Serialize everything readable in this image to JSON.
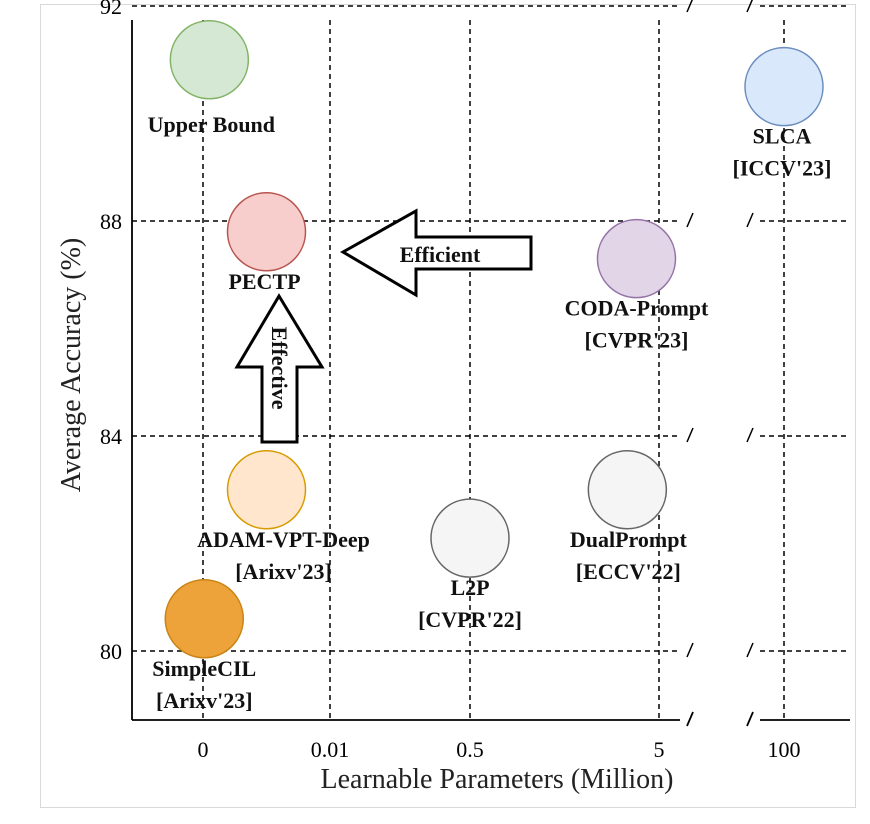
{
  "chart_data": {
    "type": "scatter",
    "title": "",
    "xlabel": "Learnable Parameters (Million)",
    "ylabel": "Average Accuracy (%)",
    "x_ticks": [
      "0",
      "0.01",
      "0.5",
      "5",
      "100"
    ],
    "y_ticks": [
      80,
      84,
      88,
      92
    ],
    "ylim": [
      78.7,
      92
    ],
    "x_scale": "broken",
    "grid": true,
    "points": [
      {
        "label": [
          "Upper Bound"
        ],
        "x": 0.0005,
        "y": 91.0,
        "fill": "#d5e8d4",
        "stroke": "#82b366"
      },
      {
        "label": [
          "SLCA",
          "[ICCV'23]"
        ],
        "x": 100,
        "y": 90.5,
        "fill": "#dae8fc",
        "stroke": "#6c8ebf"
      },
      {
        "label": [
          "PECTP"
        ],
        "x": 0.005,
        "y": 87.8,
        "fill": "#f8cecc",
        "stroke": "#b85450"
      },
      {
        "label": [
          "CODA-Prompt",
          "[CVPR'23]"
        ],
        "x": 3.8,
        "y": 87.3,
        "fill": "#e1d5e7",
        "stroke": "#9673a6"
      },
      {
        "label": [
          "ADAM-VPT-Deep",
          "[Arixv'23]"
        ],
        "x": 0.005,
        "y": 83.0,
        "fill": "#ffe6cc",
        "stroke": "#d79b00"
      },
      {
        "label": [
          "DualPrompt",
          "[ECCV'22]"
        ],
        "x": 3.4,
        "y": 83.0,
        "fill": "#f5f5f5",
        "stroke": "#666666"
      },
      {
        "label": [
          "L2P",
          "[CVPR'22]"
        ],
        "x": 0.5,
        "y": 82.1,
        "fill": "#f5f5f5",
        "stroke": "#666666"
      },
      {
        "label": [
          "SimpleCIL",
          "[Arixv'23]"
        ],
        "x": 0.0001,
        "y": 80.6,
        "fill": "#eda23a",
        "stroke": "#c98414"
      }
    ],
    "annotations": [
      "Efficient",
      "Effective"
    ]
  }
}
